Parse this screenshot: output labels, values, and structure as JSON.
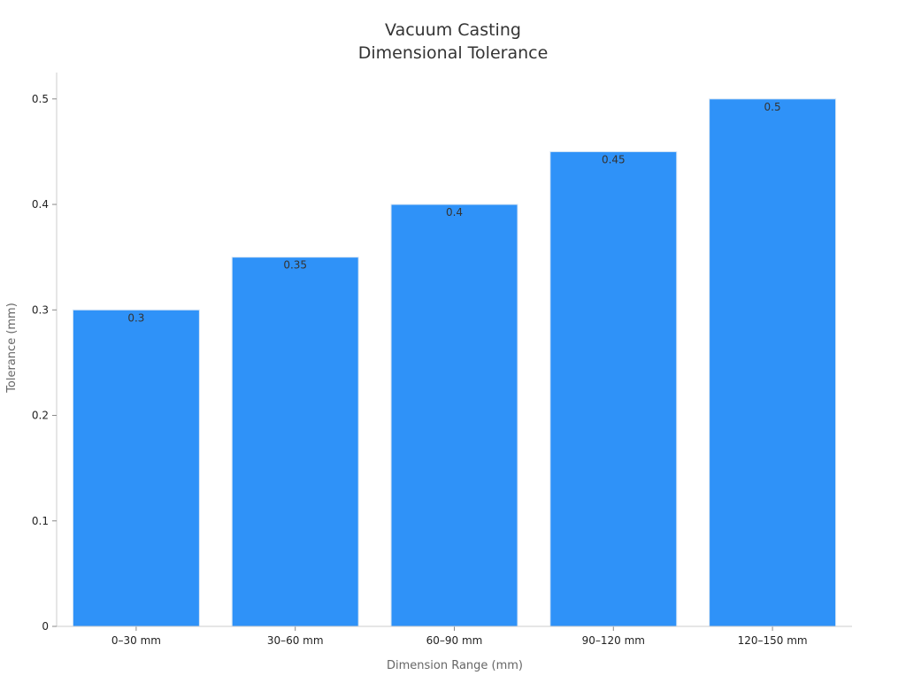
{
  "chart_data": {
    "type": "bar",
    "title": "Vacuum Casting\nDimensional Tolerance",
    "title_lines": [
      "Vacuum Casting",
      "Dimensional Tolerance"
    ],
    "xlabel": "Dimension Range (mm)",
    "ylabel": "Tolerance (mm)",
    "categories": [
      "0–30 mm",
      "30–60 mm",
      "60–90 mm",
      "90–120 mm",
      "120–150 mm"
    ],
    "values": [
      0.3,
      0.35,
      0.4,
      0.45,
      0.5
    ],
    "data_labels": [
      "0.3",
      "0.35",
      "0.4",
      "0.45",
      "0.5"
    ],
    "yticks": [
      0,
      0.1,
      0.2,
      0.3,
      0.4,
      0.5
    ],
    "ytick_labels": [
      "0",
      "0.1",
      "0.2",
      "0.3",
      "0.4",
      "0.5"
    ],
    "ylim": [
      0,
      0.525
    ],
    "grid": false,
    "legend": "none",
    "bar_color": "#2f92f8"
  }
}
